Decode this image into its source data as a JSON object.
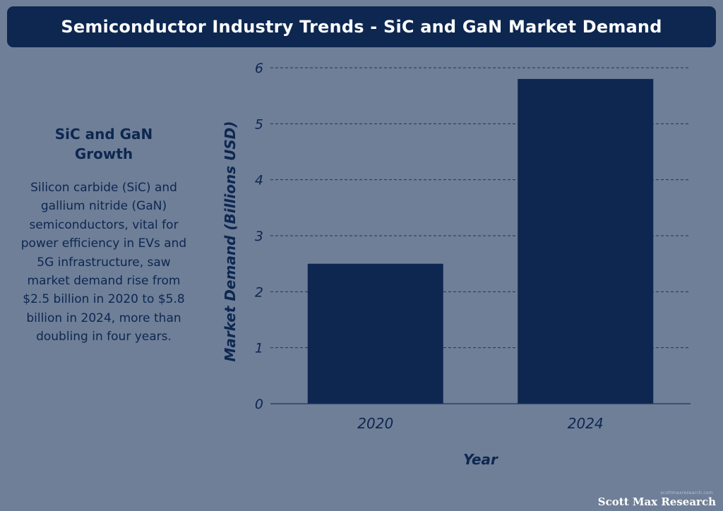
{
  "header": {
    "title": "Semiconductor Industry Trends - SiC and GaN Market Demand"
  },
  "side_panel": {
    "heading": "SiC and GaN Growth",
    "body": "Silicon carbide (SiC) and gallium nitride (GaN) semiconductors, vital for power efficiency in EVs and 5G infrastructure, saw market demand rise from $2.5 billion in 2020 to $5.8 billion in 2024, more than doubling in four years."
  },
  "chart_data": {
    "type": "bar",
    "categories": [
      "2020",
      "2024"
    ],
    "values": [
      2.5,
      5.8
    ],
    "title": "",
    "xlabel": "Year",
    "ylabel": "Market Demand (Billions USD)",
    "ylim": [
      0,
      6
    ],
    "yticks": [
      0,
      1,
      2,
      3,
      4,
      5,
      6
    ],
    "grid": "horizontal dashed",
    "legend": "none"
  },
  "colors": {
    "background": "#6f7f98",
    "bar": "#0d2750",
    "title_bar": "#0d2750",
    "text": "#0d2750",
    "grid": "#1f3458"
  },
  "footer": {
    "small_text": "scottmaxresearch.com",
    "logo": "Scott Max Research"
  }
}
